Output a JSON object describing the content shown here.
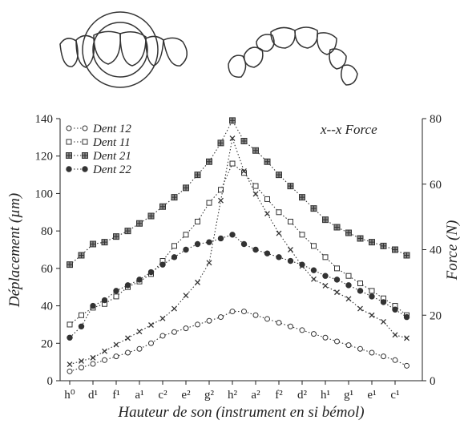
{
  "chart_data": {
    "type": "line",
    "categories": [
      "h⁰",
      null,
      "d¹",
      null,
      "f¹",
      null,
      "a¹",
      null,
      "c²",
      null,
      "e²",
      null,
      "g²",
      null,
      "h²",
      null,
      "a²",
      null,
      "f²",
      null,
      "d²",
      null,
      "h¹",
      null,
      "g¹",
      null,
      "e¹",
      null,
      "c¹",
      null
    ],
    "x_label": "Hauteur de son (instrument en si bémol)",
    "y_label": "Déplacement (µm)",
    "y2_label": "Force (N)",
    "annotation": "x--x Force",
    "ylim": [
      0,
      140
    ],
    "yticks": [
      0,
      20,
      40,
      60,
      80,
      100,
      120,
      140
    ],
    "y2lim": [
      0,
      80
    ],
    "y2ticks": [
      0,
      20,
      40,
      60,
      80
    ],
    "series": [
      {
        "name": "Dent 12",
        "marker": "open-circle",
        "color": "#333",
        "values": [
          5,
          7,
          9,
          11,
          13,
          15,
          17,
          20,
          24,
          26,
          28,
          30,
          32,
          34,
          37,
          37,
          35,
          33,
          31,
          29,
          27,
          25,
          23,
          21,
          19,
          17,
          15,
          13,
          11,
          8
        ]
      },
      {
        "name": "Dent 11",
        "marker": "open-square",
        "color": "#333",
        "values": [
          30,
          35,
          39,
          41,
          45,
          50,
          53,
          57,
          64,
          72,
          78,
          85,
          95,
          102,
          116,
          111,
          104,
          97,
          90,
          85,
          78,
          72,
          66,
          60,
          56,
          52,
          48,
          44,
          40,
          35
        ]
      },
      {
        "name": "Dent 21",
        "marker": "grid-square",
        "color": "#333",
        "values": [
          62,
          67,
          73,
          74,
          77,
          80,
          84,
          88,
          93,
          98,
          103,
          110,
          117,
          127,
          139,
          128,
          123,
          117,
          110,
          104,
          98,
          92,
          86,
          82,
          79,
          76,
          74,
          72,
          70,
          67
        ]
      },
      {
        "name": "Dent 22",
        "marker": "filled-circle",
        "color": "#333",
        "values": [
          23,
          29,
          40,
          43,
          48,
          51,
          54,
          58,
          62,
          66,
          70,
          73,
          74,
          76,
          78,
          73,
          70,
          68,
          66,
          64,
          62,
          59,
          56,
          54,
          51,
          48,
          45,
          42,
          38,
          34
        ]
      },
      {
        "name": "Force",
        "marker": "cross",
        "color": "#333",
        "axis": "y2",
        "legend": false,
        "values": [
          5,
          6,
          7,
          9,
          11,
          13,
          15,
          17,
          19,
          22,
          26,
          30,
          36,
          55,
          74,
          64,
          57,
          51,
          45,
          40,
          35,
          31,
          29,
          27,
          25,
          22,
          20,
          18,
          14,
          13
        ]
      }
    ]
  }
}
